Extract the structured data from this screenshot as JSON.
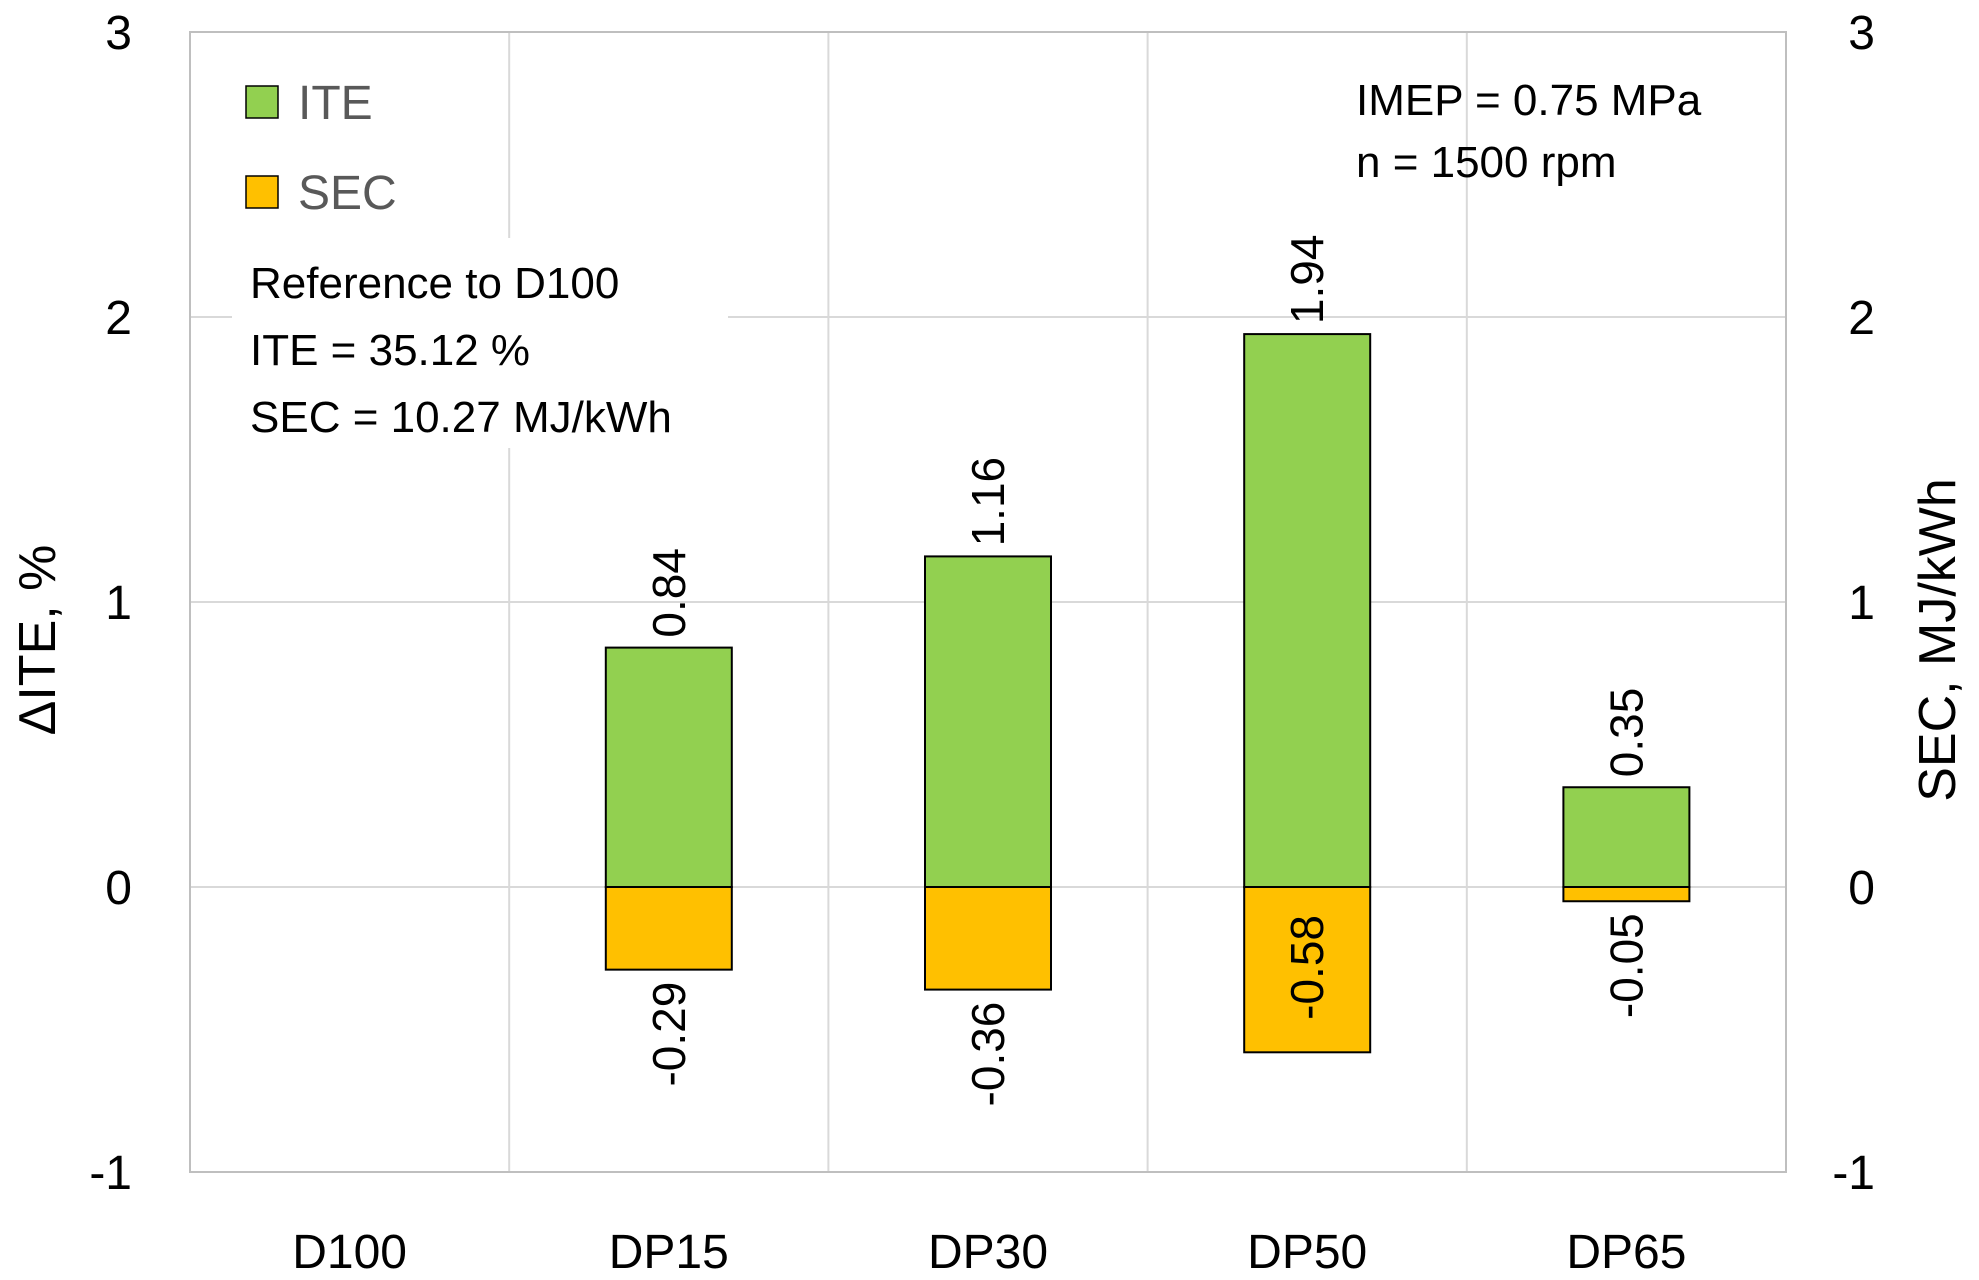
{
  "chart_data": {
    "type": "bar",
    "categories": [
      "D100",
      "DP15",
      "DP30",
      "DP50",
      "DP65"
    ],
    "series": [
      {
        "name": "ITE",
        "values": [
          null,
          0.84,
          1.16,
          1.94,
          0.35
        ],
        "color": "#92d050",
        "labels": [
          "",
          "0.84",
          "1.16",
          "1.94",
          "0.35"
        ]
      },
      {
        "name": "SEC",
        "values": [
          null,
          -0.29,
          -0.36,
          -0.58,
          -0.05
        ],
        "color": "#ffc000",
        "labels": [
          "",
          "-0.29",
          "-0.36",
          "-0.58",
          "-0.05"
        ]
      }
    ],
    "ylabel": "ΔITE, %",
    "y2label": "SEC, MJ/kWh",
    "ylim": [
      -1,
      3
    ],
    "y2lim": [
      -1,
      3
    ],
    "yticks": [
      "-1",
      "0",
      "1",
      "2",
      "3"
    ],
    "grid": true,
    "legend_position": "top-left",
    "annotations": {
      "conditions": [
        "IMEP = 0.75 MPa",
        "n = 1500 rpm"
      ],
      "reference": [
        "Reference to D100",
        "ITE = 35.12 %",
        "SEC = 10.27 MJ/kWh"
      ]
    }
  },
  "colors": {
    "ite": "#92d050",
    "sec": "#ffc000",
    "grid": "#d9d9d9",
    "axis": "#bfbfbf"
  }
}
